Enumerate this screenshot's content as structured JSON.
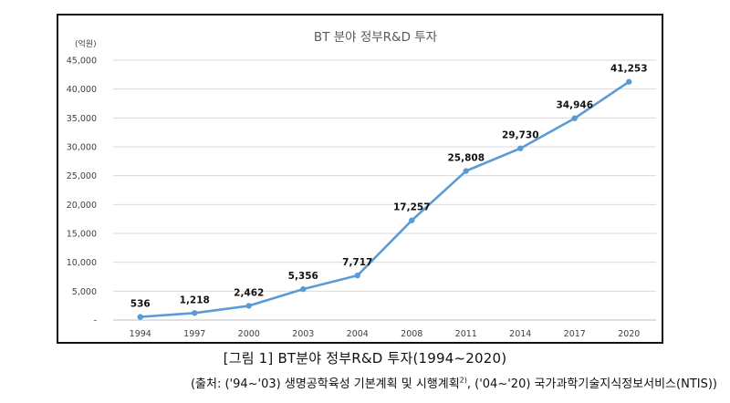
{
  "chart_data": {
    "type": "line",
    "title": "BT 분야 정부R&D 투자",
    "ylabel": "(억원)",
    "xlabel": "",
    "categories": [
      "1994",
      "1997",
      "2000",
      "2003",
      "2004",
      "2008",
      "2011",
      "2014",
      "2017",
      "2020"
    ],
    "values": [
      536,
      1218,
      2462,
      5356,
      7717,
      17257,
      25808,
      29730,
      34946,
      41253
    ],
    "value_labels": [
      "536",
      "1,218",
      "2,462",
      "5,356",
      "7,717",
      "17,257",
      "25,808",
      "29,730",
      "34,946",
      "41,253"
    ],
    "ylim": [
      0,
      45000
    ],
    "yticks": [
      0,
      5000,
      10000,
      15000,
      20000,
      25000,
      30000,
      35000,
      40000,
      45000
    ],
    "ytick_labels": [
      "-",
      "5,000",
      "10,000",
      "15,000",
      "20,000",
      "25,000",
      "30,000",
      "35,000",
      "40,000",
      "45,000"
    ],
    "grid": true,
    "line_color": "#5b9bd5"
  },
  "caption": {
    "figure": "[그림 1] BT분야 정부R&D 투자(1994~2020)",
    "source_prefix": "(출처: ('94~'03) 생명공학육성 기본계획 및 시행계획",
    "source_sup": "2)",
    "source_suffix": ", ('04~'20) 국가과학기술지식정보서비스(NTIS))"
  }
}
